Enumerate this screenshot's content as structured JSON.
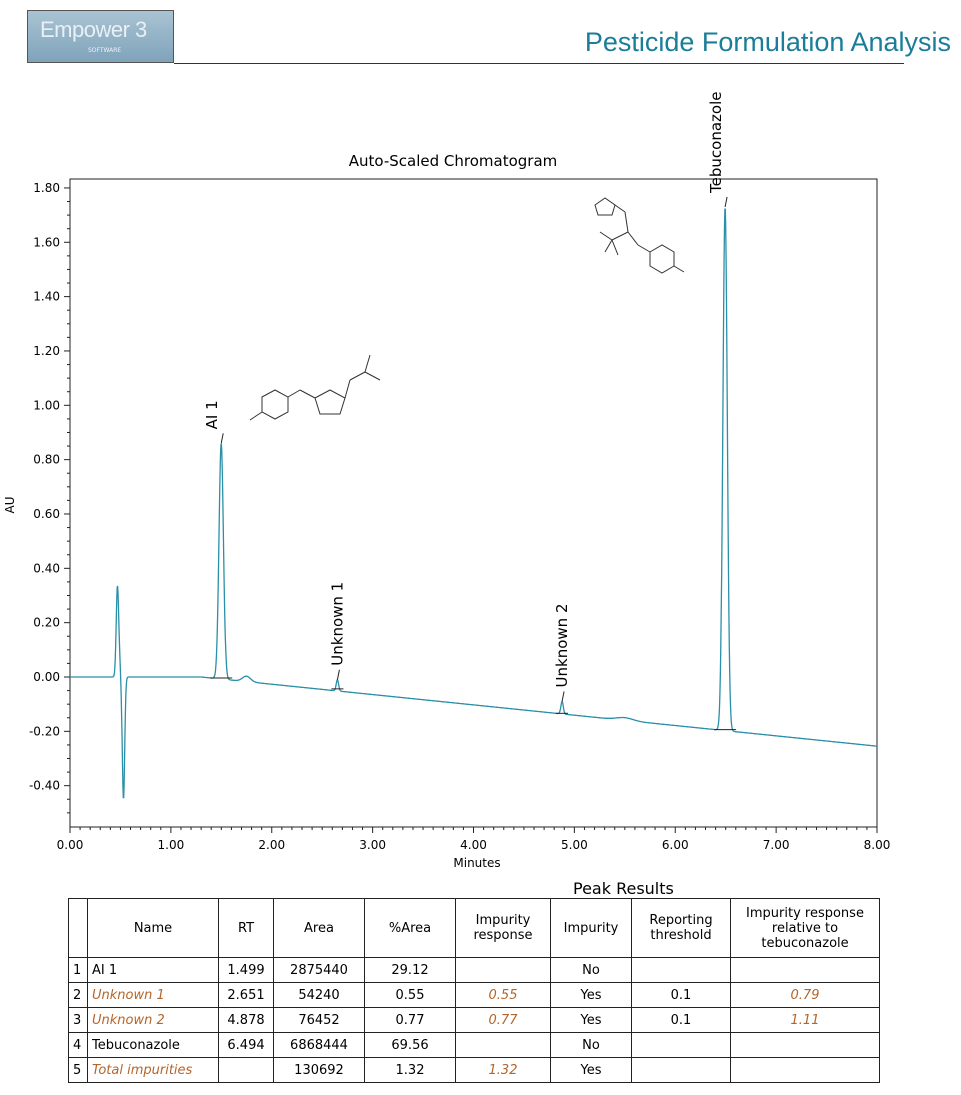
{
  "header": {
    "logo": "Empower 3",
    "logo_sub": "SOFTWARE",
    "title": "Pesticide Formulation Analysis"
  },
  "chart_data": {
    "type": "line",
    "title": "Auto-Scaled Chromatogram",
    "xlabel": "Minutes",
    "ylabel": "AU",
    "xlim": [
      0,
      8
    ],
    "ylim": [
      -0.55,
      1.88
    ],
    "xticks": [
      "0.00",
      "1.00",
      "2.00",
      "3.00",
      "4.00",
      "5.00",
      "6.00",
      "7.00",
      "8.00"
    ],
    "yticks": [
      "-0.40",
      "-0.20",
      "0.00",
      "0.20",
      "0.40",
      "0.60",
      "0.80",
      "1.00",
      "1.20",
      "1.40",
      "1.60",
      "1.80"
    ],
    "line_color": "#2a8fa8",
    "peaks": [
      {
        "label": "AI 1",
        "rt": 1.499,
        "apex": 0.86,
        "baseline": 0.0
      },
      {
        "label": "Unknown 1",
        "rt": 2.651,
        "apex": -0.01,
        "baseline": -0.04
      },
      {
        "label": "Unknown 2",
        "rt": 4.878,
        "apex": -0.09,
        "baseline": -0.13
      },
      {
        "label": "Tebuconazole",
        "rt": 6.494,
        "apex": 1.73,
        "baseline": -0.19
      }
    ]
  },
  "table": {
    "title": "Peak Results",
    "headers": [
      "",
      "Name",
      "RT",
      "Area",
      "%Area",
      "Impurity response",
      "Impurity",
      "Reporting threshold",
      "Impurity response relative to tebuconazole"
    ],
    "rows": [
      [
        "1",
        "AI 1",
        "1.499",
        "2875440",
        "29.12",
        "",
        "No",
        "",
        ""
      ],
      [
        "2",
        "Unknown 1",
        "2.651",
        "54240",
        "0.55",
        "0.55",
        "Yes",
        "0.1",
        "0.79"
      ],
      [
        "3",
        "Unknown 2",
        "4.878",
        "76452",
        "0.77",
        "0.77",
        "Yes",
        "0.1",
        "1.11"
      ],
      [
        "4",
        "Tebuconazole",
        "6.494",
        "6868444",
        "69.56",
        "",
        "No",
        "",
        ""
      ],
      [
        "5",
        "Total impurities",
        "",
        "130692",
        "1.32",
        "1.32",
        "Yes",
        "",
        ""
      ]
    ],
    "highlight_color": "#b5652a"
  }
}
